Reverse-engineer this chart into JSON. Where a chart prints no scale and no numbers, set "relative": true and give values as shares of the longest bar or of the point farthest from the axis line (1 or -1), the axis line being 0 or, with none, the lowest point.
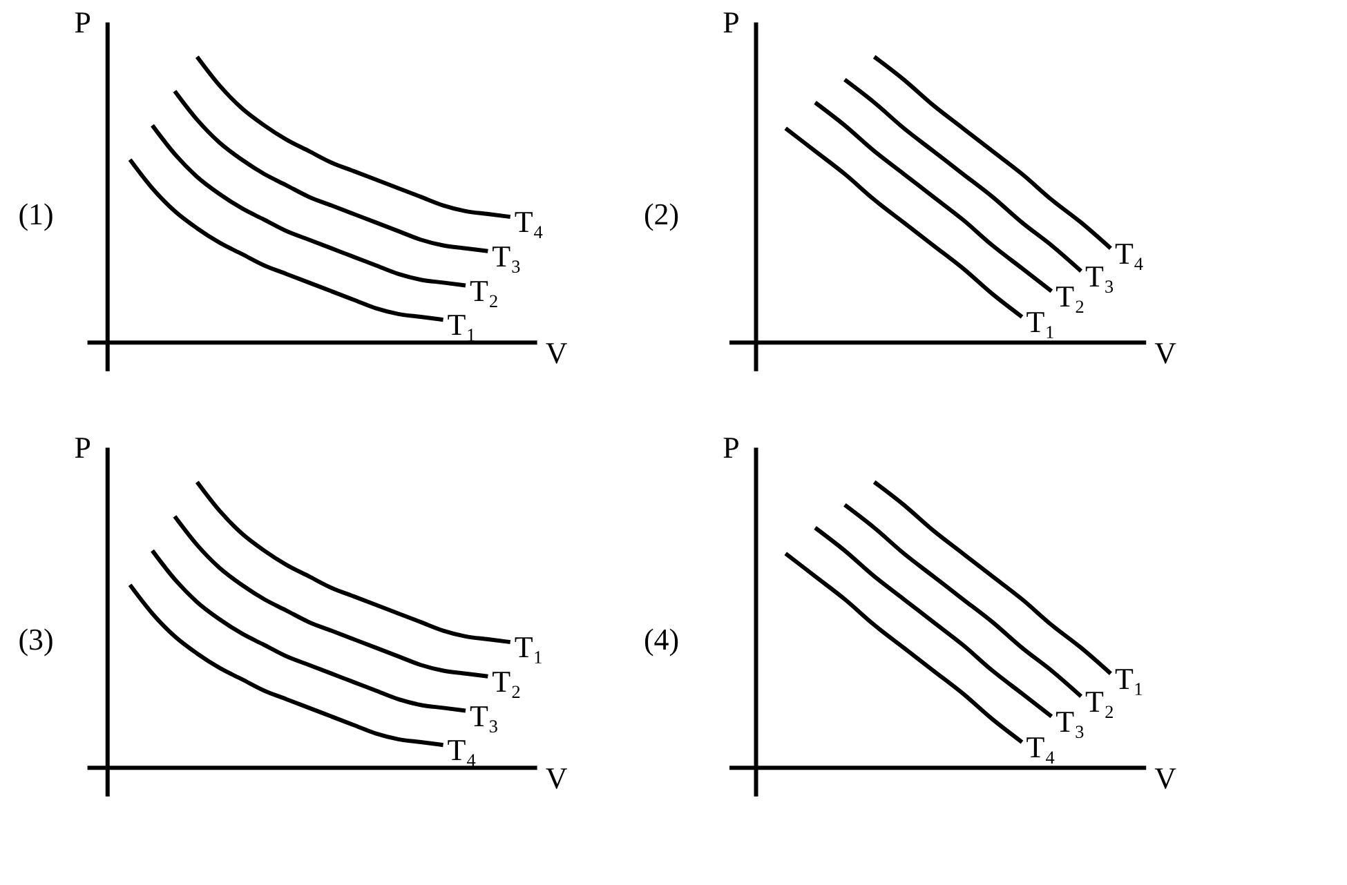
{
  "chart_data": [
    {
      "type": "line",
      "title": "(1)",
      "xlabel": "V",
      "ylabel": "P",
      "relative": true,
      "categories": [
        null,
        null,
        null,
        null,
        null,
        null,
        null,
        null,
        null,
        null,
        null,
        null,
        null,
        null,
        null,
        null,
        null,
        null,
        null
      ],
      "series": [
        {
          "name": "T₁",
          "color": "#000000",
          "values": [
            null,
            0.64,
            0.54,
            0.46,
            0.4,
            0.35,
            0.31,
            0.27,
            0.24,
            0.21,
            0.18,
            0.15,
            0.12,
            0.1,
            0.09,
            0.08,
            null,
            null,
            null
          ]
        },
        {
          "name": "T₂",
          "color": "#000000",
          "values": [
            null,
            null,
            0.76,
            0.66,
            0.58,
            0.52,
            0.47,
            0.43,
            0.39,
            0.36,
            0.33,
            0.3,
            0.27,
            0.24,
            0.22,
            0.21,
            0.2,
            null,
            null
          ]
        },
        {
          "name": "T₃",
          "color": "#000000",
          "values": [
            null,
            null,
            null,
            0.88,
            0.78,
            0.7,
            0.64,
            0.59,
            0.55,
            0.51,
            0.48,
            0.45,
            0.42,
            0.39,
            0.36,
            0.34,
            0.33,
            0.32,
            null
          ]
        },
        {
          "name": "T₄",
          "color": "#000000",
          "values": [
            null,
            null,
            null,
            null,
            1,
            0.9,
            0.82,
            0.76,
            0.71,
            0.67,
            0.63,
            0.6,
            0.57,
            0.54,
            0.51,
            0.48,
            0.46,
            0.45,
            0.44
          ]
        }
      ]
    },
    {
      "type": "line",
      "title": "(2)",
      "xlabel": "V",
      "ylabel": "P",
      "relative": true,
      "categories": [
        null,
        null,
        null,
        null,
        null,
        null,
        null,
        null,
        null,
        null,
        null,
        null,
        null
      ],
      "series": [
        {
          "name": "T₁",
          "color": "#000000",
          "values": [
            null,
            0.75,
            0.67,
            0.59,
            0.5,
            0.42,
            0.34,
            0.26,
            0.17,
            0.09,
            null,
            null,
            null
          ]
        },
        {
          "name": "T₂",
          "color": "#000000",
          "values": [
            null,
            null,
            0.84,
            0.76,
            0.67,
            0.59,
            0.51,
            0.43,
            0.34,
            0.26,
            0.18,
            null,
            null
          ]
        },
        {
          "name": "T₃",
          "color": "#000000",
          "values": [
            null,
            null,
            null,
            0.92,
            0.84,
            0.75,
            0.67,
            0.59,
            0.51,
            0.42,
            0.34,
            0.25,
            null
          ]
        },
        {
          "name": "T₄",
          "color": "#000000",
          "values": [
            null,
            null,
            null,
            null,
            1,
            0.92,
            0.83,
            0.75,
            0.67,
            0.59,
            0.5,
            0.42,
            0.33
          ]
        }
      ]
    },
    {
      "type": "line",
      "title": "(3)",
      "xlabel": "V",
      "ylabel": "P",
      "relative": true,
      "categories": [
        null,
        null,
        null,
        null,
        null,
        null,
        null,
        null,
        null,
        null,
        null,
        null,
        null,
        null,
        null,
        null,
        null,
        null,
        null
      ],
      "series": [
        {
          "name": "T₄",
          "color": "#000000",
          "values": [
            null,
            0.64,
            0.54,
            0.46,
            0.4,
            0.35,
            0.31,
            0.27,
            0.24,
            0.21,
            0.18,
            0.15,
            0.12,
            0.1,
            0.09,
            0.08,
            null,
            null,
            null
          ]
        },
        {
          "name": "T₃",
          "color": "#000000",
          "values": [
            null,
            null,
            0.76,
            0.66,
            0.58,
            0.52,
            0.47,
            0.43,
            0.39,
            0.36,
            0.33,
            0.3,
            0.27,
            0.24,
            0.22,
            0.21,
            0.2,
            null,
            null
          ]
        },
        {
          "name": "T₂",
          "color": "#000000",
          "values": [
            null,
            null,
            null,
            0.88,
            0.78,
            0.7,
            0.64,
            0.59,
            0.55,
            0.51,
            0.48,
            0.45,
            0.42,
            0.39,
            0.36,
            0.34,
            0.33,
            0.32,
            null
          ]
        },
        {
          "name": "T₁",
          "color": "#000000",
          "values": [
            null,
            null,
            null,
            null,
            1,
            0.9,
            0.82,
            0.76,
            0.71,
            0.67,
            0.63,
            0.6,
            0.57,
            0.54,
            0.51,
            0.48,
            0.46,
            0.45,
            0.44
          ]
        }
      ]
    },
    {
      "type": "line",
      "title": "(4)",
      "xlabel": "V",
      "ylabel": "P",
      "relative": true,
      "categories": [
        null,
        null,
        null,
        null,
        null,
        null,
        null,
        null,
        null,
        null,
        null,
        null,
        null
      ],
      "series": [
        {
          "name": "T₄",
          "color": "#000000",
          "values": [
            null,
            0.75,
            0.67,
            0.59,
            0.5,
            0.42,
            0.34,
            0.26,
            0.17,
            0.09,
            null,
            null,
            null
          ]
        },
        {
          "name": "T₃",
          "color": "#000000",
          "values": [
            null,
            null,
            0.84,
            0.76,
            0.67,
            0.59,
            0.51,
            0.43,
            0.34,
            0.26,
            0.18,
            null,
            null
          ]
        },
        {
          "name": "T₂",
          "color": "#000000",
          "values": [
            null,
            null,
            null,
            0.92,
            0.84,
            0.75,
            0.67,
            0.59,
            0.51,
            0.42,
            0.34,
            0.25,
            null
          ]
        },
        {
          "name": "T₁",
          "color": "#000000",
          "values": [
            null,
            null,
            null,
            null,
            1,
            0.92,
            0.83,
            0.75,
            0.67,
            0.59,
            0.5,
            0.42,
            0.33
          ]
        }
      ]
    }
  ]
}
